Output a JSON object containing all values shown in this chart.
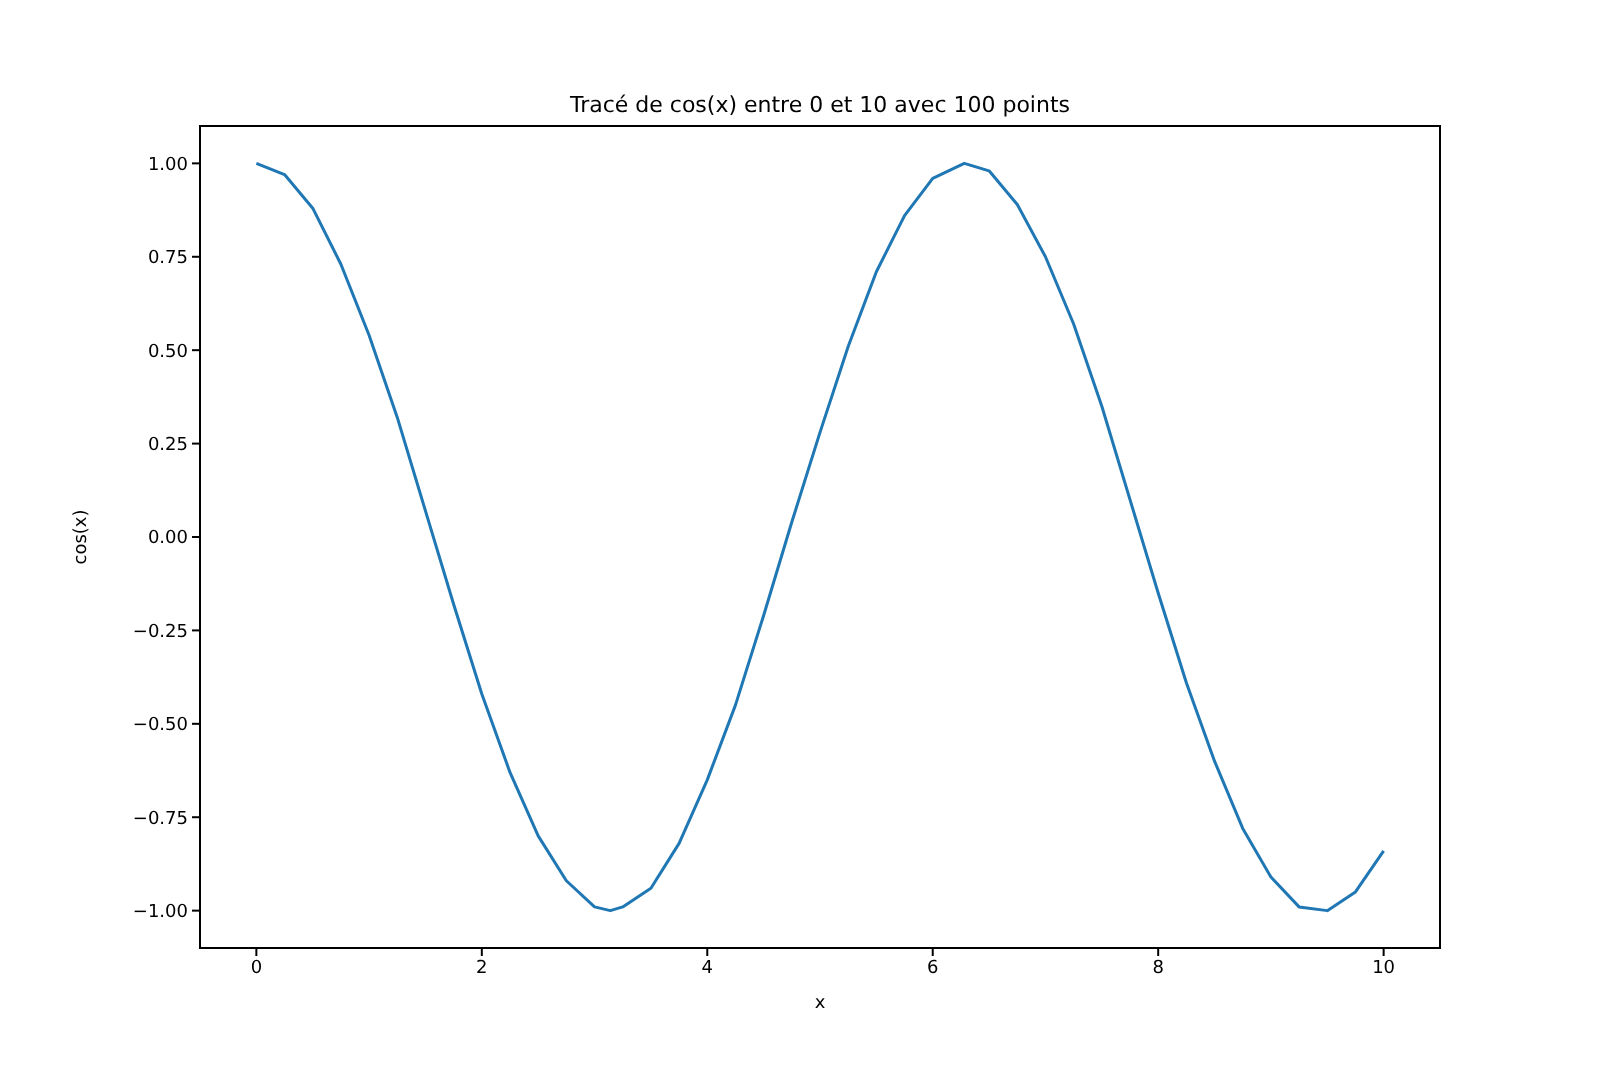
{
  "chart_data": {
    "type": "line",
    "title": "Tracé de cos(x) entre 0 et 10 avec 100 points",
    "xlabel": "x",
    "ylabel": "cos(x)",
    "x": [
      0,
      0.25,
      0.5,
      0.75,
      1,
      1.25,
      1.5,
      1.75,
      2,
      2.25,
      2.5,
      2.75,
      3,
      3.14,
      3.25,
      3.5,
      3.75,
      4,
      4.25,
      4.5,
      4.75,
      5,
      5.25,
      5.5,
      5.75,
      6,
      6.28,
      6.5,
      6.75,
      7,
      7.25,
      7.5,
      7.75,
      8,
      8.25,
      8.5,
      8.75,
      9,
      9.25,
      9.5,
      9.75,
      10
    ],
    "series": [
      {
        "color": "#1f77b4",
        "values": [
          1.0,
          0.97,
          0.88,
          0.73,
          0.54,
          0.32,
          0.07,
          -0.18,
          -0.42,
          -0.63,
          -0.8,
          -0.92,
          -0.99,
          -1.0,
          -0.99,
          -0.94,
          -0.82,
          -0.65,
          -0.45,
          -0.21,
          0.04,
          0.28,
          0.51,
          0.71,
          0.86,
          0.96,
          1.0,
          0.98,
          0.89,
          0.75,
          0.57,
          0.35,
          0.1,
          -0.15,
          -0.39,
          -0.6,
          -0.78,
          -0.91,
          -0.99,
          -1.0,
          -0.95,
          -0.84
        ]
      }
    ],
    "xlim": [
      -0.5,
      10.5
    ],
    "ylim": [
      -1.1,
      1.1
    ],
    "xticks": [
      0,
      2,
      4,
      6,
      8,
      10
    ],
    "yticks": [
      {
        "value": -1,
        "label": "−1.00"
      },
      {
        "value": -0.75,
        "label": "−0.75"
      },
      {
        "value": -0.5,
        "label": "−0.50"
      },
      {
        "value": -0.25,
        "label": "−0.25"
      },
      {
        "value": 0,
        "label": "0.00"
      },
      {
        "value": 0.25,
        "label": "0.25"
      },
      {
        "value": 0.5,
        "label": "0.50"
      },
      {
        "value": 0.75,
        "label": "0.75"
      },
      {
        "value": 1,
        "label": "1.00"
      }
    ],
    "grid": false,
    "marker": "none",
    "line_style": "solid"
  }
}
